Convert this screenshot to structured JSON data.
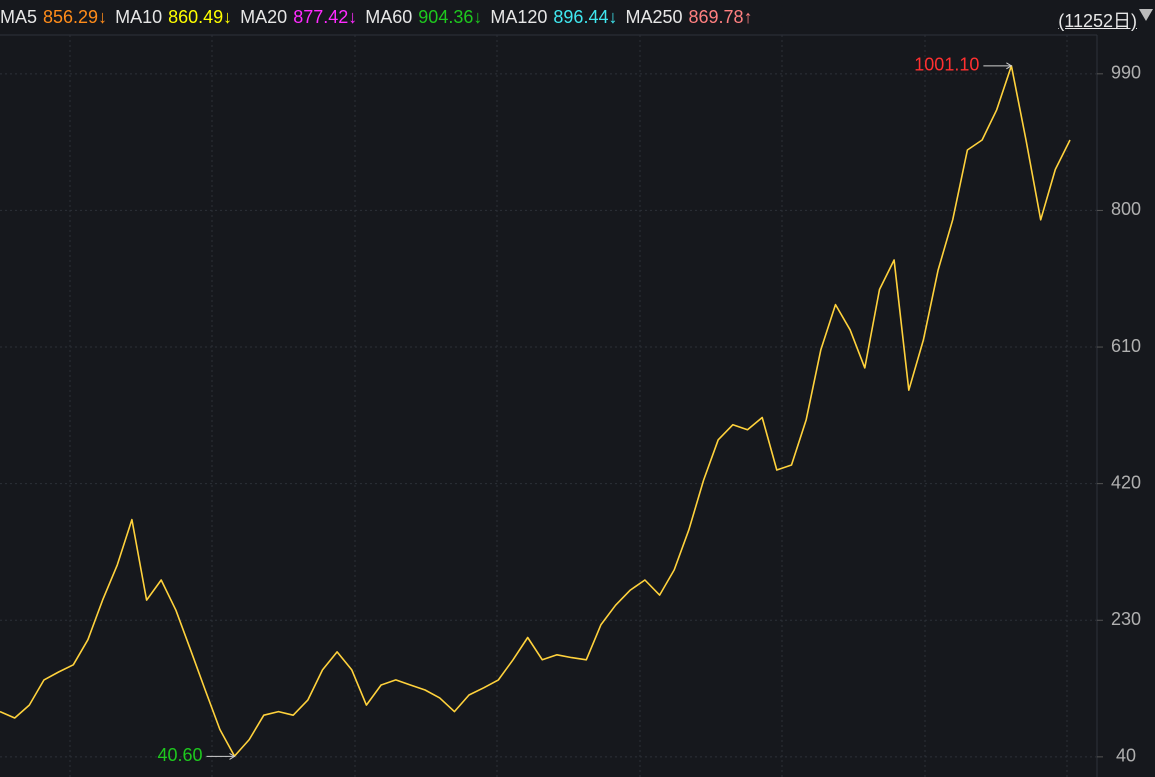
{
  "chart_data": {
    "type": "line",
    "period_label": "(11252日)",
    "ma_legend": [
      {
        "name": "MA5",
        "value": 856.29,
        "arrow": "↓",
        "color": "#ff8c1a"
      },
      {
        "name": "MA10",
        "value": 860.49,
        "arrow": "↓",
        "color": "#ffff00"
      },
      {
        "name": "MA20",
        "value": 877.42,
        "arrow": "↓",
        "color": "#ff2bff"
      },
      {
        "name": "MA60",
        "value": 904.36,
        "arrow": "↓",
        "color": "#1ec81e"
      },
      {
        "name": "MA120",
        "value": 896.44,
        "arrow": "↓",
        "color": "#40e8f0"
      },
      {
        "name": "MA250",
        "value": 869.78,
        "arrow": "↑",
        "color": "#ff8080"
      }
    ],
    "series": [
      {
        "color": "#ffd23c",
        "values": [
          103,
          94,
          112,
          147,
          158,
          168,
          203,
          258,
          307,
          370,
          258,
          286,
          244,
          189,
          133,
          78,
          41,
          64,
          98,
          103,
          98,
          119,
          161,
          186,
          161,
          112,
          140,
          147,
          140,
          133,
          122,
          103,
          126,
          136,
          147,
          175,
          206,
          175,
          182,
          178,
          175,
          224,
          251,
          272,
          286,
          265,
          300,
          356,
          425,
          481,
          502,
          495,
          512,
          439,
          446,
          509,
          606,
          669,
          634,
          581,
          690,
          731,
          550,
          620,
          717,
          787,
          884,
          898,
          940,
          1001,
          898,
          787,
          857,
          898
        ]
      }
    ],
    "annotations": [
      {
        "value": 1001.1,
        "label": "1001.10",
        "color": "#ff3030",
        "index": 69
      },
      {
        "value": 40.6,
        "label": "40.60",
        "color": "#1ec81e",
        "index": 16
      }
    ],
    "ylim": [
      12,
      1044
    ],
    "yticks": [
      40,
      230,
      420,
      610,
      800,
      990
    ],
    "grid": true
  }
}
